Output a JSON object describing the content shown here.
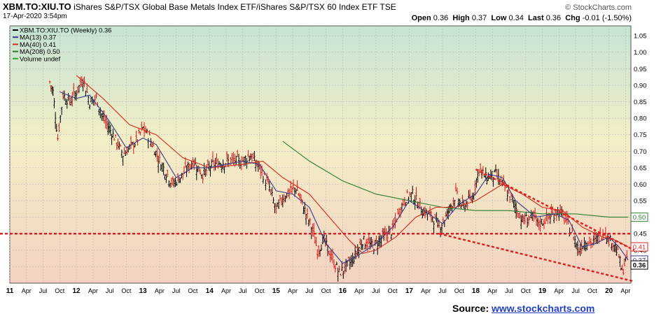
{
  "header": {
    "symbol": "XBM.TO:XIU.TO",
    "description": "iShares S&P/TSX Global Base Metals Index ETF/iShares S&P/TSX 60 Index ETF",
    "exchange": "TSE",
    "date": "17-Apr-2020 3:54pm",
    "brand": "© StockCharts.com"
  },
  "ohlc": {
    "open_label": "Open",
    "open": "0.36",
    "high_label": "High",
    "high": "0.37",
    "low_label": "Low",
    "low": "0.34",
    "last_label": "Last",
    "last": "0.36",
    "chg_label": "Chg",
    "chg": "-0.01 (-1.50%)"
  },
  "legend": [
    {
      "label": "XBM.TO:XIU.TO (Weekly) 0.36",
      "color": "#000000"
    },
    {
      "label": "MA(13) 0.37",
      "color": "#3a3a8a"
    },
    {
      "label": "MA(40) 0.41",
      "color": "#d62a1e"
    },
    {
      "label": "MA(208) 0.50",
      "color": "#2e7d2e"
    },
    {
      "label": "Volume undef",
      "color": "#33aa33"
    }
  ],
  "source": {
    "label": "Source:",
    "link": "www.stockcharts.com"
  },
  "chart_data": {
    "type": "line",
    "yaxis_ticks": [
      "1.05",
      "1.00",
      "0.95",
      "0.90",
      "0.85",
      "0.80",
      "0.75",
      "0.70",
      "0.65",
      "0.60",
      "0.55",
      "0.50",
      "0.45",
      "0.40",
      "0.35"
    ],
    "ylim": [
      0.3,
      1.08
    ],
    "xlim": [
      2011.0,
      2020.33
    ],
    "x_ticks": [
      {
        "label": "11",
        "x": 2011.0
      },
      {
        "label": "Apr",
        "x": 2011.25
      },
      {
        "label": "Jul",
        "x": 2011.5
      },
      {
        "label": "Oct",
        "x": 2011.75
      },
      {
        "label": "12",
        "x": 2012.0
      },
      {
        "label": "Apr",
        "x": 2012.25
      },
      {
        "label": "Jul",
        "x": 2012.5
      },
      {
        "label": "Oct",
        "x": 2012.75
      },
      {
        "label": "13",
        "x": 2013.0
      },
      {
        "label": "Apr",
        "x": 2013.25
      },
      {
        "label": "Jul",
        "x": 2013.5
      },
      {
        "label": "Oct",
        "x": 2013.75
      },
      {
        "label": "14",
        "x": 2014.0
      },
      {
        "label": "Apr",
        "x": 2014.25
      },
      {
        "label": "Jul",
        "x": 2014.5
      },
      {
        "label": "Oct",
        "x": 2014.75
      },
      {
        "label": "15",
        "x": 2015.0
      },
      {
        "label": "Apr",
        "x": 2015.25
      },
      {
        "label": "Jul",
        "x": 2015.5
      },
      {
        "label": "Oct",
        "x": 2015.75
      },
      {
        "label": "16",
        "x": 2016.0
      },
      {
        "label": "Apr",
        "x": 2016.25
      },
      {
        "label": "Jul",
        "x": 2016.5
      },
      {
        "label": "Oct",
        "x": 2016.75
      },
      {
        "label": "17",
        "x": 2017.0
      },
      {
        "label": "Apr",
        "x": 2017.25
      },
      {
        "label": "Jul",
        "x": 2017.5
      },
      {
        "label": "Oct",
        "x": 2017.75
      },
      {
        "label": "18",
        "x": 2018.0
      },
      {
        "label": "Apr",
        "x": 2018.25
      },
      {
        "label": "Jul",
        "x": 2018.5
      },
      {
        "label": "Oct",
        "x": 2018.75
      },
      {
        "label": "19",
        "x": 2019.0
      },
      {
        "label": "Apr",
        "x": 2019.25
      },
      {
        "label": "Jul",
        "x": 2019.5
      },
      {
        "label": "Oct",
        "x": 2019.75
      },
      {
        "label": "20",
        "x": 2020.0
      },
      {
        "label": "Apr",
        "x": 2020.25
      }
    ],
    "price_path": [
      [
        2011.6,
        0.91
      ],
      [
        2011.65,
        0.88
      ],
      [
        2011.72,
        0.74
      ],
      [
        2011.8,
        0.87
      ],
      [
        2011.9,
        0.85
      ],
      [
        2012.0,
        0.88
      ],
      [
        2012.1,
        0.92
      ],
      [
        2012.2,
        0.85
      ],
      [
        2012.3,
        0.86
      ],
      [
        2012.4,
        0.8
      ],
      [
        2012.55,
        0.75
      ],
      [
        2012.7,
        0.69
      ],
      [
        2012.9,
        0.73
      ],
      [
        2013.0,
        0.77
      ],
      [
        2013.1,
        0.74
      ],
      [
        2013.25,
        0.67
      ],
      [
        2013.45,
        0.6
      ],
      [
        2013.6,
        0.63
      ],
      [
        2013.75,
        0.67
      ],
      [
        2013.9,
        0.63
      ],
      [
        2014.05,
        0.66
      ],
      [
        2014.3,
        0.67
      ],
      [
        2014.5,
        0.67
      ],
      [
        2014.6,
        0.69
      ],
      [
        2014.75,
        0.65
      ],
      [
        2014.9,
        0.59
      ],
      [
        2015.0,
        0.52
      ],
      [
        2015.1,
        0.56
      ],
      [
        2015.3,
        0.59
      ],
      [
        2015.45,
        0.51
      ],
      [
        2015.55,
        0.46
      ],
      [
        2015.62,
        0.4
      ],
      [
        2015.72,
        0.43
      ],
      [
        2015.85,
        0.37
      ],
      [
        2015.95,
        0.33
      ],
      [
        2016.05,
        0.35
      ],
      [
        2016.15,
        0.37
      ],
      [
        2016.3,
        0.43
      ],
      [
        2016.45,
        0.41
      ],
      [
        2016.6,
        0.44
      ],
      [
        2016.75,
        0.46
      ],
      [
        2016.85,
        0.52
      ],
      [
        2016.95,
        0.56
      ],
      [
        2017.05,
        0.57
      ],
      [
        2017.2,
        0.52
      ],
      [
        2017.35,
        0.5
      ],
      [
        2017.45,
        0.47
      ],
      [
        2017.55,
        0.5
      ],
      [
        2017.7,
        0.57
      ],
      [
        2017.8,
        0.53
      ],
      [
        2017.95,
        0.56
      ],
      [
        2018.05,
        0.65
      ],
      [
        2018.15,
        0.62
      ],
      [
        2018.3,
        0.63
      ],
      [
        2018.4,
        0.6
      ],
      [
        2018.55,
        0.55
      ],
      [
        2018.7,
        0.49
      ],
      [
        2018.85,
        0.5
      ],
      [
        2018.95,
        0.48
      ],
      [
        2019.1,
        0.5
      ],
      [
        2019.25,
        0.52
      ],
      [
        2019.35,
        0.49
      ],
      [
        2019.45,
        0.45
      ],
      [
        2019.55,
        0.4
      ],
      [
        2019.65,
        0.43
      ],
      [
        2019.75,
        0.42
      ],
      [
        2019.85,
        0.44
      ],
      [
        2019.95,
        0.46
      ],
      [
        2020.0,
        0.43
      ],
      [
        2020.08,
        0.42
      ],
      [
        2020.15,
        0.38
      ],
      [
        2020.2,
        0.33
      ],
      [
        2020.25,
        0.37
      ],
      [
        2020.29,
        0.36
      ]
    ],
    "ma13": [
      [
        2011.75,
        0.88
      ],
      [
        2012.0,
        0.86
      ],
      [
        2012.2,
        0.87
      ],
      [
        2012.5,
        0.79
      ],
      [
        2012.75,
        0.71
      ],
      [
        2013.0,
        0.74
      ],
      [
        2013.2,
        0.72
      ],
      [
        2013.5,
        0.62
      ],
      [
        2013.75,
        0.65
      ],
      [
        2014.0,
        0.65
      ],
      [
        2014.5,
        0.67
      ],
      [
        2014.75,
        0.66
      ],
      [
        2015.0,
        0.58
      ],
      [
        2015.25,
        0.57
      ],
      [
        2015.5,
        0.53
      ],
      [
        2015.75,
        0.42
      ],
      [
        2016.0,
        0.36
      ],
      [
        2016.2,
        0.38
      ],
      [
        2016.5,
        0.42
      ],
      [
        2016.75,
        0.47
      ],
      [
        2017.0,
        0.55
      ],
      [
        2017.3,
        0.51
      ],
      [
        2017.5,
        0.48
      ],
      [
        2017.75,
        0.54
      ],
      [
        2018.0,
        0.57
      ],
      [
        2018.2,
        0.63
      ],
      [
        2018.4,
        0.62
      ],
      [
        2018.6,
        0.55
      ],
      [
        2018.9,
        0.5
      ],
      [
        2019.2,
        0.51
      ],
      [
        2019.4,
        0.49
      ],
      [
        2019.6,
        0.41
      ],
      [
        2019.8,
        0.42
      ],
      [
        2020.0,
        0.44
      ],
      [
        2020.15,
        0.41
      ],
      [
        2020.29,
        0.37
      ]
    ],
    "ma40": [
      [
        2012.0,
        0.93
      ],
      [
        2012.4,
        0.86
      ],
      [
        2012.8,
        0.78
      ],
      [
        2013.2,
        0.75
      ],
      [
        2013.6,
        0.68
      ],
      [
        2014.0,
        0.65
      ],
      [
        2014.5,
        0.66
      ],
      [
        2014.8,
        0.67
      ],
      [
        2015.1,
        0.62
      ],
      [
        2015.5,
        0.57
      ],
      [
        2015.8,
        0.5
      ],
      [
        2016.1,
        0.43
      ],
      [
        2016.3,
        0.39
      ],
      [
        2016.5,
        0.4
      ],
      [
        2016.8,
        0.44
      ],
      [
        2017.1,
        0.5
      ],
      [
        2017.4,
        0.53
      ],
      [
        2017.7,
        0.53
      ],
      [
        2018.0,
        0.55
      ],
      [
        2018.4,
        0.6
      ],
      [
        2018.7,
        0.57
      ],
      [
        2019.0,
        0.53
      ],
      [
        2019.3,
        0.52
      ],
      [
        2019.6,
        0.47
      ],
      [
        2019.9,
        0.44
      ],
      [
        2020.1,
        0.43
      ],
      [
        2020.29,
        0.41
      ]
    ],
    "ma208": [
      [
        2015.1,
        0.73
      ],
      [
        2015.5,
        0.67
      ],
      [
        2016.0,
        0.61
      ],
      [
        2016.5,
        0.57
      ],
      [
        2017.0,
        0.55
      ],
      [
        2017.5,
        0.53
      ],
      [
        2018.0,
        0.52
      ],
      [
        2018.5,
        0.52
      ],
      [
        2019.0,
        0.51
      ],
      [
        2019.5,
        0.51
      ],
      [
        2020.0,
        0.5
      ],
      [
        2020.29,
        0.5
      ]
    ],
    "value_labels": [
      {
        "text": "0.50",
        "y": 0.5,
        "color": "#2e7d2e"
      },
      {
        "text": "0.41",
        "y": 0.41,
        "color": "#d62a1e"
      },
      {
        "text": "0.37",
        "y": 0.37,
        "color": "#3a3a8a"
      },
      {
        "text": "0.36",
        "y": 0.355,
        "color": "#000000"
      }
    ],
    "annotations": [
      {
        "type": "hline",
        "y": 0.45
      },
      {
        "type": "trend",
        "points": [
          [
            2018.0,
            0.645
          ],
          [
            2020.38,
            0.4
          ]
        ]
      },
      {
        "type": "trend",
        "points": [
          [
            2017.45,
            0.45
          ],
          [
            2020.38,
            0.305
          ]
        ]
      }
    ]
  }
}
